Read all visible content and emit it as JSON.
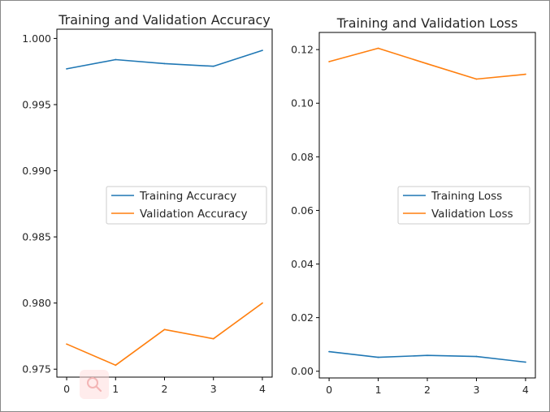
{
  "chart_data": [
    {
      "type": "line",
      "title": "Training and Validation Accuracy",
      "xlabel": "",
      "ylabel": "",
      "xlim": [
        -0.2,
        4.2
      ],
      "ylim": [
        0.9744,
        1.0007
      ],
      "x": [
        0,
        1,
        2,
        3,
        4
      ],
      "x_ticks": [
        "0",
        "1",
        "2",
        "3",
        "4"
      ],
      "y_ticks": [
        0.975,
        0.98,
        0.985,
        0.99,
        0.995,
        1.0
      ],
      "y_tick_labels": [
        "0.975",
        "0.980",
        "0.985",
        "0.990",
        "0.995",
        "1.000"
      ],
      "legend_position": "center-right",
      "series": [
        {
          "name": "Training Accuracy",
          "color": "#1f77b4",
          "values": [
            0.9977,
            0.9984,
            0.9981,
            0.9979,
            0.9991
          ]
        },
        {
          "name": "Validation Accuracy",
          "color": "#ff7f0e",
          "values": [
            0.9769,
            0.9753,
            0.978,
            0.9773,
            0.98
          ]
        }
      ]
    },
    {
      "type": "line",
      "title": "Training and Validation Loss",
      "xlabel": "",
      "ylabel": "",
      "xlim": [
        -0.2,
        4.2
      ],
      "ylim": [
        -0.0025,
        0.1264
      ],
      "x": [
        0,
        1,
        2,
        3,
        4
      ],
      "x_ticks": [
        "0",
        "1",
        "2",
        "3",
        "4"
      ],
      "y_ticks": [
        0.0,
        0.02,
        0.04,
        0.06,
        0.08,
        0.1,
        0.12
      ],
      "y_tick_labels": [
        "0.00",
        "0.02",
        "0.04",
        "0.06",
        "0.08",
        "0.10",
        "0.12"
      ],
      "legend_position": "center-right",
      "series": [
        {
          "name": "Training Loss",
          "color": "#1f77b4",
          "values": [
            0.0073,
            0.0052,
            0.0059,
            0.0055,
            0.0034
          ]
        },
        {
          "name": "Validation Loss",
          "color": "#ff7f0e",
          "values": [
            0.1155,
            0.1205,
            0.1147,
            0.109,
            0.1108
          ]
        }
      ]
    }
  ],
  "overlay": {
    "icon": "magnifier-icon"
  }
}
